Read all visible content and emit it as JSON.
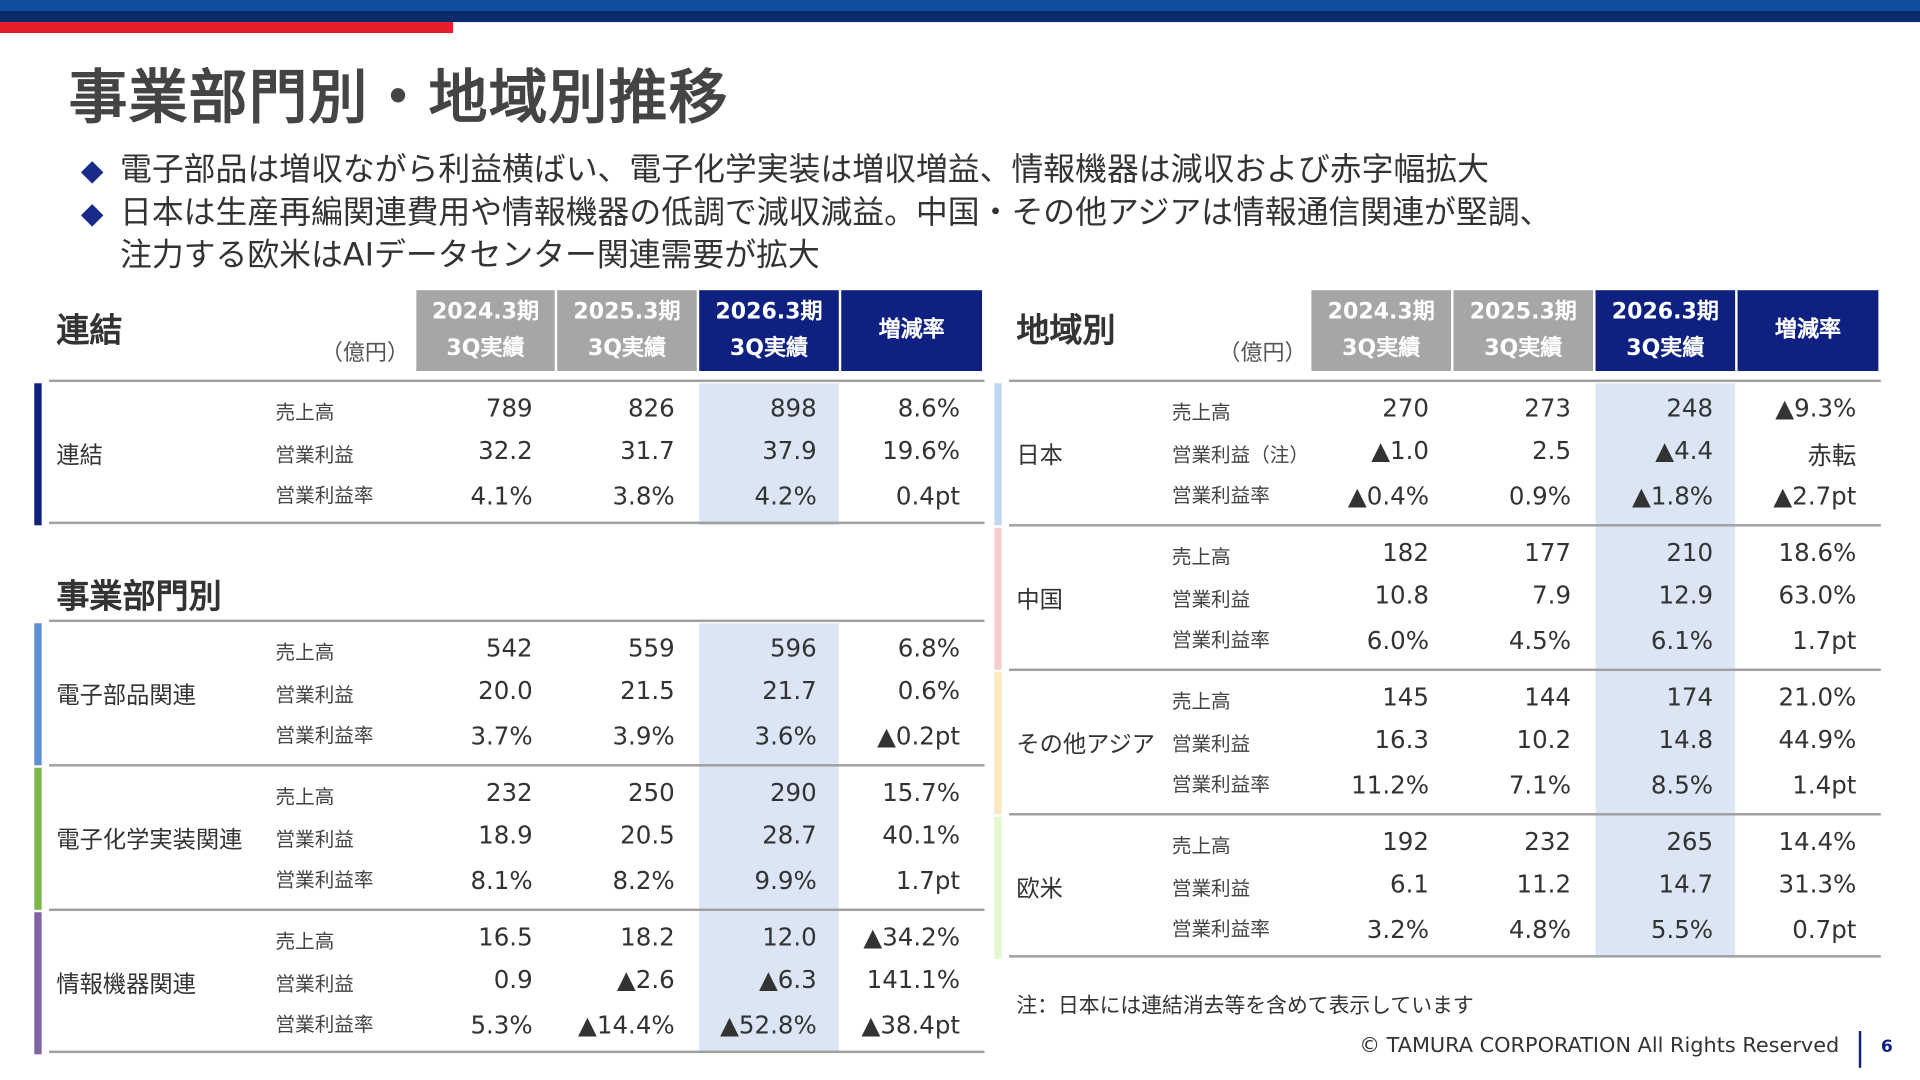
{
  "title": "事業部門別・地域別推移",
  "bullets": [
    "電子部品は増収ながら利益横ばい、電子化学実装は増収増益、情報機器は減収および赤字幅拡大",
    "日本は生産再編関連費用や情報機器の低調で減収減益。中国・その他アジアは情報通信関連が堅調、",
    "注力する欧米はAIデータセンター関連需要が拡大"
  ],
  "bullet_icon": "diamond-icon",
  "columns": [
    {
      "line1": "2024.3期",
      "line2": "3Q実績"
    },
    {
      "line1": "2025.3期",
      "line2": "3Q実績"
    },
    {
      "line1": "2026.3期",
      "line2": "3Q実績"
    },
    {
      "line1": "増減率",
      "line2": ""
    }
  ],
  "unit": "（億円）",
  "left": {
    "consolidated_title": "連結",
    "segment_title": "事業部門別",
    "groups": [
      {
        "name": "連結",
        "color": "#0f2180",
        "rows": [
          {
            "metric": "売上高",
            "values": [
              "789",
              "826",
              "898",
              "8.6%"
            ]
          },
          {
            "metric": "営業利益",
            "values": [
              "32.2",
              "31.7",
              "37.9",
              "19.6%"
            ]
          },
          {
            "metric": "営業利益率",
            "values": [
              "4.1%",
              "3.8%",
              "4.2%",
              "0.4pt"
            ]
          }
        ]
      },
      {
        "name": "電子部品関連",
        "color": "#5b8fd0",
        "rows": [
          {
            "metric": "売上高",
            "values": [
              "542",
              "559",
              "596",
              "6.8%"
            ]
          },
          {
            "metric": "営業利益",
            "values": [
              "20.0",
              "21.5",
              "21.7",
              "0.6%"
            ]
          },
          {
            "metric": "営業利益率",
            "values": [
              "3.7%",
              "3.9%",
              "3.6%",
              "▲0.2pt"
            ]
          }
        ]
      },
      {
        "name": "電子化学実装関連",
        "color": "#7ab648",
        "rows": [
          {
            "metric": "売上高",
            "values": [
              "232",
              "250",
              "290",
              "15.7%"
            ]
          },
          {
            "metric": "営業利益",
            "values": [
              "18.9",
              "20.5",
              "28.7",
              "40.1%"
            ]
          },
          {
            "metric": "営業利益率",
            "values": [
              "8.1%",
              "8.2%",
              "9.9%",
              "1.7pt"
            ]
          }
        ]
      },
      {
        "name": "情報機器関連",
        "color": "#8064a2",
        "rows": [
          {
            "metric": "売上高",
            "values": [
              "16.5",
              "18.2",
              "12.0",
              "▲34.2%"
            ]
          },
          {
            "metric": "営業利益",
            "values": [
              "0.9",
              "▲2.6",
              "▲6.3",
              "141.1%"
            ]
          },
          {
            "metric": "営業利益率",
            "values": [
              "5.3%",
              "▲14.4%",
              "▲52.8%",
              "▲38.4pt"
            ]
          }
        ]
      }
    ]
  },
  "right": {
    "title": "地域別",
    "groups": [
      {
        "name": "日本",
        "color": "#bdd7f5",
        "rows": [
          {
            "metric": "売上高",
            "values": [
              "270",
              "273",
              "248",
              "▲9.3%"
            ]
          },
          {
            "metric": "営業利益（注）",
            "values": [
              "▲1.0",
              "2.5",
              "▲4.4",
              "赤転"
            ]
          },
          {
            "metric": "営業利益率",
            "values": [
              "▲0.4%",
              "0.9%",
              "▲1.8%",
              "▲2.7pt"
            ]
          }
        ]
      },
      {
        "name": "中国",
        "color": "#f7cccc",
        "rows": [
          {
            "metric": "売上高",
            "values": [
              "182",
              "177",
              "210",
              "18.6%"
            ]
          },
          {
            "metric": "営業利益",
            "values": [
              "10.8",
              "7.9",
              "12.9",
              "63.0%"
            ]
          },
          {
            "metric": "営業利益率",
            "values": [
              "6.0%",
              "4.5%",
              "6.1%",
              "1.7pt"
            ]
          }
        ]
      },
      {
        "name": "その他アジア",
        "color": "#fbe8bf",
        "rows": [
          {
            "metric": "売上高",
            "values": [
              "145",
              "144",
              "174",
              "21.0%"
            ]
          },
          {
            "metric": "営業利益",
            "values": [
              "16.3",
              "10.2",
              "14.8",
              "44.9%"
            ]
          },
          {
            "metric": "営業利益率",
            "values": [
              "11.2%",
              "7.1%",
              "8.5%",
              "1.4pt"
            ]
          }
        ]
      },
      {
        "name": "欧米",
        "color": "#e3f8cf",
        "rows": [
          {
            "metric": "売上高",
            "values": [
              "192",
              "232",
              "265",
              "14.4%"
            ]
          },
          {
            "metric": "営業利益",
            "values": [
              "6.1",
              "11.2",
              "14.7",
              "31.3%"
            ]
          },
          {
            "metric": "営業利益率",
            "values": [
              "3.2%",
              "4.8%",
              "5.5%",
              "0.7pt"
            ]
          }
        ]
      }
    ],
    "note": "注：日本には連結消去等を含めて表示しています"
  },
  "footer": {
    "copyright": "© TAMURA CORPORATION All Rights Reserved",
    "page": "6"
  },
  "colors": {
    "navy": "#0f2180",
    "blue": "#0d4ea0",
    "red": "#e41e2b",
    "gray_header": "#a6a6a6",
    "highlight": "#dbe5f3"
  }
}
